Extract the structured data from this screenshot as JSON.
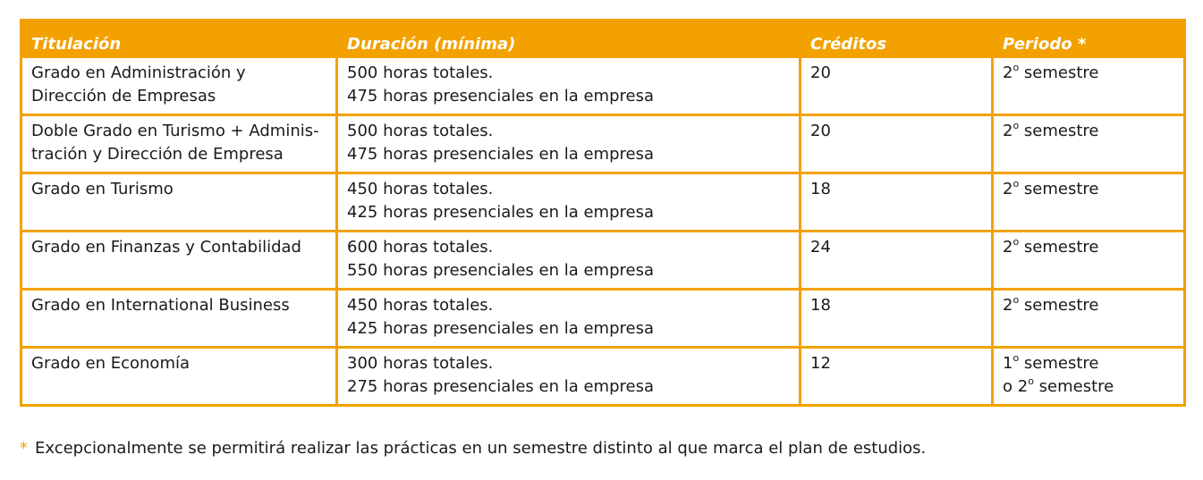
{
  "colors": {
    "accent": "#f2a100",
    "header_text": "#ffffff",
    "body_text": "#1a1a1a"
  },
  "table": {
    "headers": [
      "Titulación",
      "Duración (mínima)",
      "Créditos",
      "Periodo *"
    ],
    "rows": [
      {
        "titulacion": [
          "Grado en Administración y",
          "Dirección de Empresas"
        ],
        "duracion": [
          "500 horas totales.",
          "475 horas presenciales en la empresa"
        ],
        "creditos": "20",
        "periodo": [
          {
            "num": "2",
            "sup": "o",
            "text": " semestre"
          }
        ]
      },
      {
        "titulacion": [
          "Doble Grado en Turismo + Adminis-",
          "tración y Dirección de Empresa"
        ],
        "duracion": [
          "500 horas totales.",
          "475 horas presenciales en la empresa"
        ],
        "creditos": "20",
        "periodo": [
          {
            "num": "2",
            "sup": "o",
            "text": " semestre"
          }
        ]
      },
      {
        "titulacion": [
          "Grado en Turismo"
        ],
        "duracion": [
          "450 horas totales.",
          "425 horas presenciales en la empresa"
        ],
        "creditos": "18",
        "periodo": [
          {
            "num": "2",
            "sup": "o",
            "text": " semestre"
          }
        ]
      },
      {
        "titulacion": [
          "Grado en Finanzas y Contabilidad"
        ],
        "duracion": [
          "600 horas totales.",
          "550 horas presenciales en la empresa"
        ],
        "creditos": "24",
        "periodo": [
          {
            "num": "2",
            "sup": "o",
            "text": " semestre"
          }
        ]
      },
      {
        "titulacion": [
          "Grado en International Business"
        ],
        "duracion": [
          "450 horas totales.",
          "425 horas presenciales en la empresa"
        ],
        "creditos": "18",
        "periodo": [
          {
            "num": "2",
            "sup": "o",
            "text": " semestre"
          }
        ]
      },
      {
        "titulacion": [
          "Grado en Economía"
        ],
        "duracion": [
          "300 horas totales.",
          "275 horas presenciales en la empresa"
        ],
        "creditos": "12",
        "periodo": [
          {
            "num": "1",
            "sup": "o",
            "text": " semestre"
          },
          {
            "num": "o 2",
            "sup": "o",
            "text": " semestre"
          }
        ]
      }
    ]
  },
  "footnote": {
    "marker": "*",
    "text": "Excepcionalmente se permitirá realizar las prácticas en un semestre distinto al que marca el plan de estudios."
  }
}
